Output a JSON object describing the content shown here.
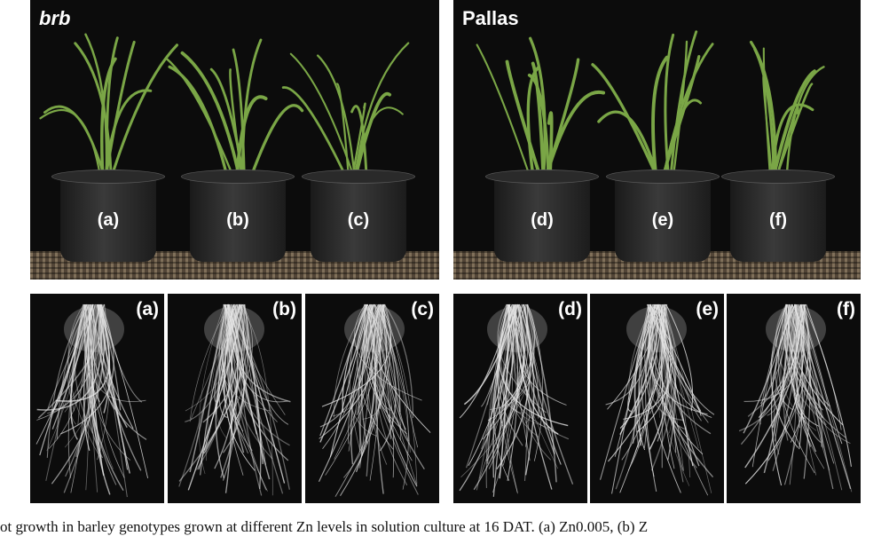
{
  "groups": {
    "brb": "brb",
    "pallas": "Pallas"
  },
  "pots": [
    "(a)",
    "(b)",
    "(c)",
    "(d)",
    "(e)",
    "(f)"
  ],
  "roots": [
    "(a)",
    "(b)",
    "(c)",
    "(d)",
    "(e)",
    "(f)"
  ],
  "caption": "ot growth in barley genotypes grown at different Zn levels in solution culture at 16 DAT. (a) Zn0.005, (b) Z",
  "colors": {
    "background": "#0c0c0c",
    "leaf": "#7aa646",
    "root": "#e8e8e8"
  }
}
